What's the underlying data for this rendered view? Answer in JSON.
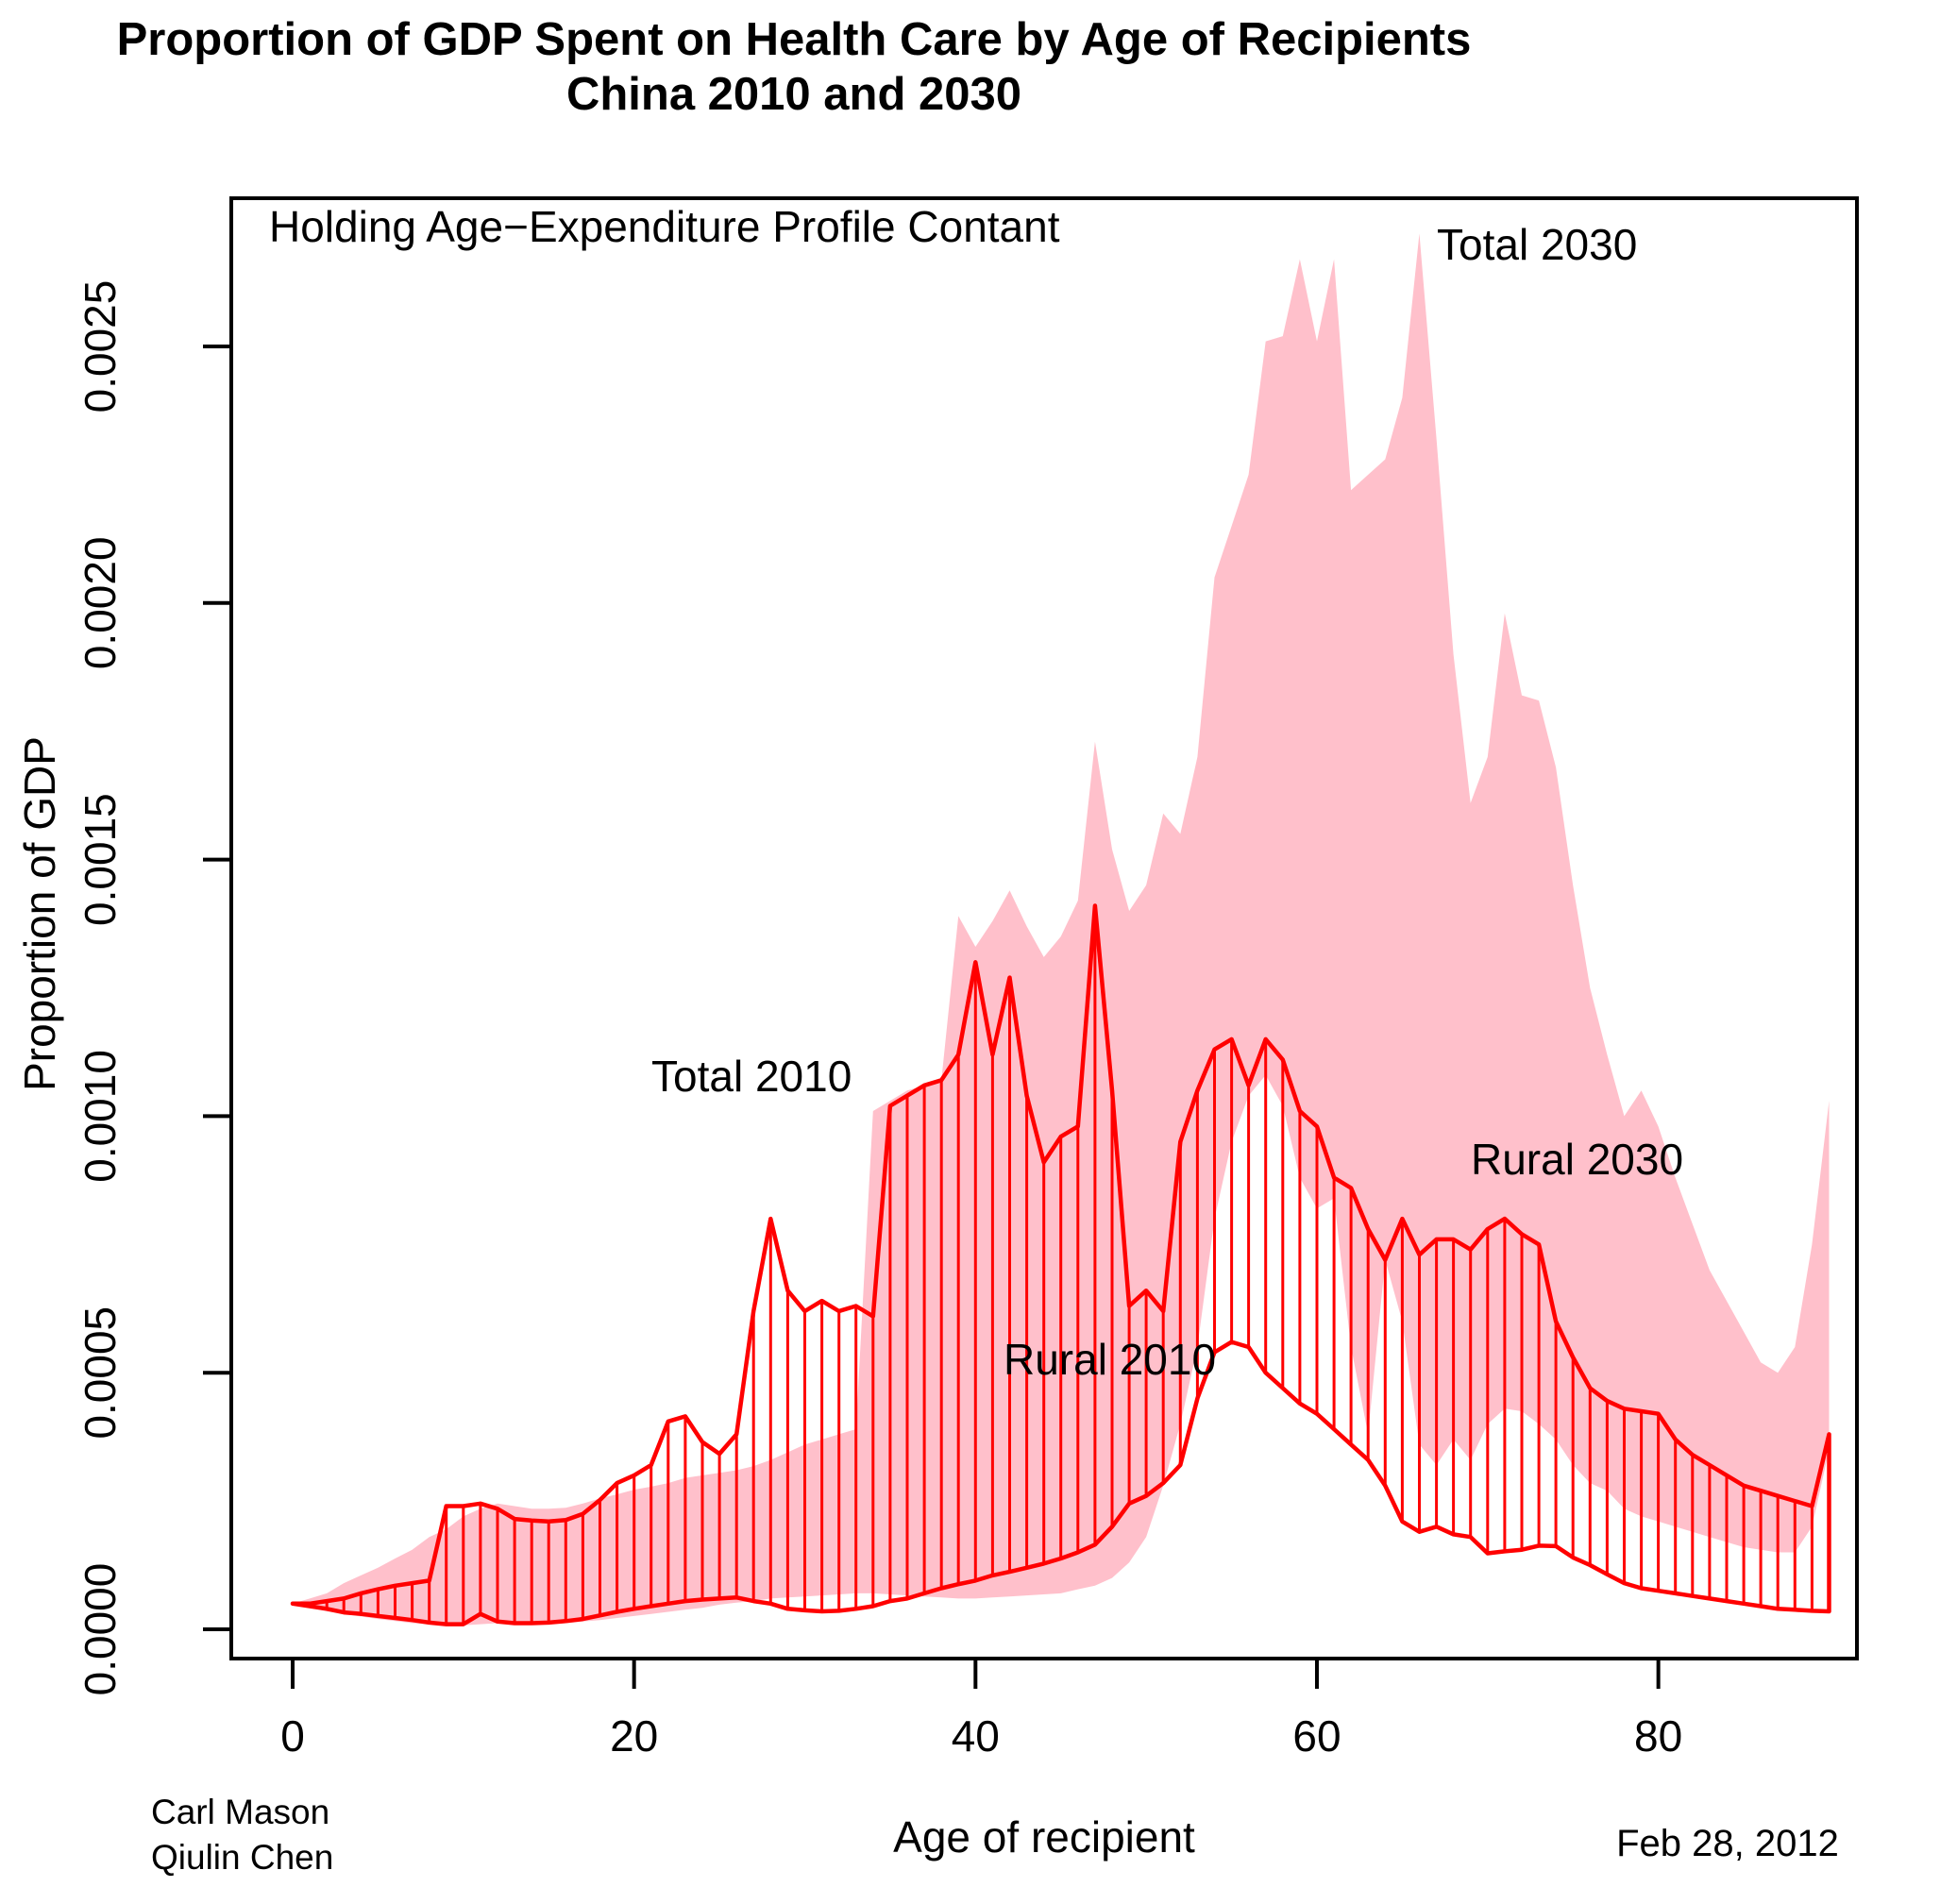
{
  "title": {
    "line1": "Proportion of GDP Spent on Health Care by Age of Recipients",
    "line2": "China 2010 and 2030"
  },
  "annotations": {
    "subtitle": "Holding Age−Expenditure Profile Contant",
    "label_total_2030": "Total 2030",
    "label_total_2010": "Total 2010",
    "label_rural_2030": "Rural 2030",
    "label_rural_2010": "Rural 2010"
  },
  "footer": {
    "author_line1": "Carl Mason",
    "author_line2": "Qiulin Chen",
    "date": "Feb 28, 2012"
  },
  "colors": {
    "band_2030_fill": "#ffc0cb",
    "band_2010_stroke": "#ff0000",
    "axis": "#000000"
  },
  "chart_data": {
    "type": "area",
    "title": "Proportion of GDP Spent on Health Care by Age of Recipients China 2010 and 2030",
    "xlabel": "Age of recipient",
    "ylabel": "Proportion of GDP",
    "xlim": [
      0,
      92
    ],
    "ylim": [
      0,
      0.00285
    ],
    "grid": false,
    "x_ticks": [
      "0",
      "20",
      "40",
      "60",
      "80"
    ],
    "x_tick_values": [
      0,
      20,
      40,
      60,
      80
    ],
    "y_ticks": [
      "0.0000",
      "0.0005",
      "0.0010",
      "0.0015",
      "0.0020",
      "0.0025"
    ],
    "y_tick_values": [
      0,
      0.0005,
      0.001,
      0.0015,
      0.002,
      0.0025
    ],
    "ages": [
      0,
      1,
      2,
      3,
      4,
      5,
      6,
      7,
      8,
      9,
      10,
      11,
      12,
      13,
      14,
      15,
      16,
      17,
      18,
      19,
      20,
      21,
      22,
      23,
      24,
      25,
      26,
      27,
      28,
      29,
      30,
      31,
      32,
      33,
      34,
      35,
      36,
      37,
      38,
      39,
      40,
      41,
      42,
      43,
      44,
      45,
      46,
      47,
      48,
      49,
      50,
      51,
      52,
      53,
      54,
      55,
      56,
      57,
      58,
      59,
      60,
      61,
      62,
      63,
      64,
      65,
      66,
      67,
      68,
      69,
      70,
      71,
      72,
      73,
      74,
      75,
      76,
      77,
      78,
      79,
      80,
      81,
      82,
      83,
      84,
      85,
      86,
      87,
      88,
      89,
      90
    ],
    "series": [
      {
        "name": "Total 2030",
        "band": "2030-upper",
        "values": [
          5e-05,
          6e-05,
          7e-05,
          9e-05,
          0.000105,
          0.00012,
          0.000138,
          0.000155,
          0.00018,
          0.000195,
          0.00022,
          0.000235,
          0.000245,
          0.00024,
          0.000235,
          0.000235,
          0.000237,
          0.000245,
          0.000255,
          0.000263,
          0.000272,
          0.000278,
          0.000285,
          0.000295,
          0.0003,
          0.000305,
          0.00031,
          0.000318,
          0.00033,
          0.000345,
          0.00036,
          0.00037,
          0.00038,
          0.00039,
          0.00101,
          0.00103,
          0.00105,
          0.00106,
          0.00107,
          0.00139,
          0.00133,
          0.00138,
          0.00144,
          0.00137,
          0.00131,
          0.00135,
          0.00142,
          0.00173,
          0.00152,
          0.0014,
          0.00145,
          0.00159,
          0.00155,
          0.0017,
          0.00205,
          0.00215,
          0.00225,
          0.00251,
          0.00252,
          0.00267,
          0.00251,
          0.00267,
          0.00222,
          0.00225,
          0.00228,
          0.0024,
          0.00272,
          0.00232,
          0.0019,
          0.00161,
          0.0017,
          0.00198,
          0.00182,
          0.00181,
          0.00168,
          0.00145,
          0.00125,
          0.00112,
          0.001,
          0.00105,
          0.00098,
          0.00088,
          0.00079,
          0.0007,
          0.00064,
          0.00058,
          0.00052,
          0.0005,
          0.00055,
          0.00075,
          0.00103
        ]
      },
      {
        "name": "Rural 2030",
        "band": "2030-lower",
        "values": [
          5e-05,
          4.2e-05,
          3.5e-05,
          3e-05,
          2.5e-05,
          2e-05,
          1.6e-05,
          1.2e-05,
          1e-05,
          8e-06,
          8e-06,
          1e-05,
          1.2e-05,
          1e-05,
          1e-05,
          1e-05,
          1.2e-05,
          1.5e-05,
          1.8e-05,
          2.2e-05,
          2.6e-05,
          3e-05,
          3.4e-05,
          3.8e-05,
          4.2e-05,
          4.8e-05,
          5.2e-05,
          5.5e-05,
          6e-05,
          6.2e-05,
          6.4e-05,
          6.6e-05,
          6.8e-05,
          7e-05,
          7e-05,
          6.8e-05,
          6.6e-05,
          6.4e-05,
          6.2e-05,
          6e-05,
          6e-05,
          6.2e-05,
          6.4e-05,
          6.6e-05,
          6.8e-05,
          7e-05,
          7.8e-05,
          8.5e-05,
          0.0001,
          0.00013,
          0.00018,
          0.00028,
          0.0004,
          0.00055,
          0.0008,
          0.00095,
          0.00104,
          0.00108,
          0.00102,
          0.00088,
          0.00082,
          0.00084,
          0.00055,
          0.00038,
          0.00072,
          0.0006,
          0.00036,
          0.00032,
          0.00037,
          0.00033,
          0.0004,
          0.00043,
          0.000425,
          0.0004,
          0.00037,
          0.00032,
          0.000285,
          0.00027,
          0.000235,
          0.00022,
          0.00021,
          0.0002,
          0.00019,
          0.00018,
          0.00017,
          0.00016,
          0.000155,
          0.00015,
          0.00015,
          0.0002,
          0.00035
        ]
      },
      {
        "name": "Total 2010",
        "band": "2010-upper",
        "values": [
          5e-05,
          5e-05,
          5.5e-05,
          6e-05,
          7e-05,
          7.8e-05,
          8.5e-05,
          9e-05,
          9.5e-05,
          0.00024,
          0.00024,
          0.000245,
          0.000235,
          0.000215,
          0.000212,
          0.00021,
          0.000213,
          0.000225,
          0.000252,
          0.000285,
          0.0003,
          0.00032,
          0.000405,
          0.000415,
          0.000365,
          0.000342,
          0.00038,
          0.00062,
          0.0008,
          0.00066,
          0.00062,
          0.00064,
          0.00062,
          0.00063,
          0.00061,
          0.00102,
          0.00104,
          0.00106,
          0.00107,
          0.00112,
          0.0013,
          0.00112,
          0.00127,
          0.00104,
          0.00091,
          0.00096,
          0.00098,
          0.00141,
          0.00105,
          0.00063,
          0.00066,
          0.00062,
          0.00095,
          0.00105,
          0.00113,
          0.00115,
          0.00106,
          0.00115,
          0.00111,
          0.00101,
          0.00098,
          0.00088,
          0.00086,
          0.00078,
          0.00072,
          0.0008,
          0.00073,
          0.00076,
          0.00076,
          0.00074,
          0.00078,
          0.0008,
          0.00077,
          0.00075,
          0.0006,
          0.00053,
          0.00047,
          0.000445,
          0.00043,
          0.000425,
          0.00042,
          0.00037,
          0.00034,
          0.00032,
          0.0003,
          0.00028,
          0.00027,
          0.00026,
          0.00025,
          0.00024,
          0.00038
        ]
      },
      {
        "name": "Rural 2010",
        "band": "2010-lower",
        "values": [
          5e-05,
          4.5e-05,
          4e-05,
          3.3e-05,
          3e-05,
          2.6e-05,
          2.2e-05,
          1.8e-05,
          1.3e-05,
          1e-05,
          1e-05,
          3e-05,
          1.5e-05,
          1.2e-05,
          1.2e-05,
          1.3e-05,
          1.6e-05,
          2e-05,
          2.7e-05,
          3.4e-05,
          4e-05,
          4.5e-05,
          5e-05,
          5.5e-05,
          5.8e-05,
          6e-05,
          6.2e-05,
          5.5e-05,
          5e-05,
          4e-05,
          3.7e-05,
          3.5e-05,
          3.6e-05,
          4e-05,
          4.5e-05,
          5.5e-05,
          6e-05,
          7e-05,
          8e-05,
          8.8e-05,
          9.5e-05,
          0.000105,
          0.000112,
          0.00012,
          0.000128,
          0.000138,
          0.00015,
          0.000165,
          0.0002,
          0.000245,
          0.00026,
          0.000285,
          0.00032,
          0.00045,
          0.00054,
          0.00056,
          0.00055,
          0.0005,
          0.00047,
          0.00044,
          0.00042,
          0.00039,
          0.00036,
          0.00033,
          0.00028,
          0.00021,
          0.00019,
          0.0002,
          0.000185,
          0.00018,
          0.000148,
          0.000152,
          0.000155,
          0.000163,
          0.000162,
          0.00014,
          0.000125,
          0.000107,
          9e-05,
          8e-05,
          7.5e-05,
          7e-05,
          6.5e-05,
          6e-05,
          5.5e-05,
          5e-05,
          4.5e-05,
          4e-05,
          3.8e-05,
          3.6e-05,
          3.5e-05
        ]
      }
    ],
    "legend_position": "inline-labels",
    "hatch": {
      "band": "2010",
      "orientation": "vertical",
      "per_age": true
    }
  }
}
